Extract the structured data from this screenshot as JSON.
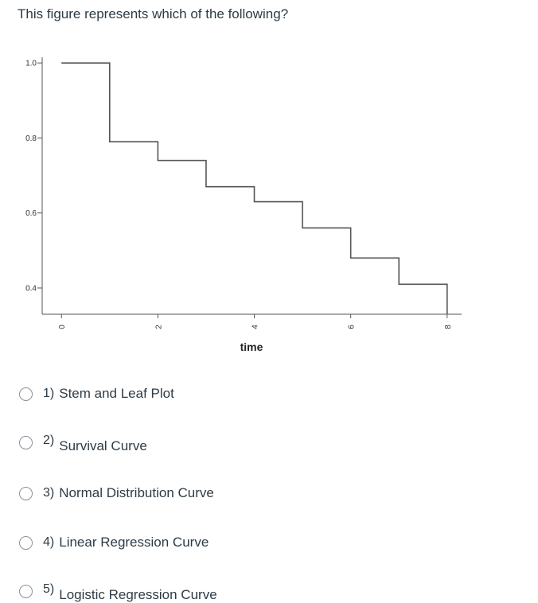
{
  "question": "This figure represents which of the following?",
  "chart_data": {
    "type": "line",
    "step": true,
    "xlabel": "time",
    "ylabel": "",
    "xlim": [
      -0.4,
      8.3
    ],
    "ylim": [
      0.33,
      1.03
    ],
    "xticks": [
      0,
      2,
      4,
      6,
      8
    ],
    "xticklabels": [
      "0",
      "2",
      "4",
      "6",
      "8"
    ],
    "yticks": [
      1.0,
      0.8,
      0.6,
      0.4
    ],
    "yticklabels": [
      "1.0",
      "0.8",
      "0.6",
      "0.4"
    ],
    "x": [
      0,
      1,
      2,
      3,
      4,
      5,
      6,
      7,
      8
    ],
    "y": [
      1.0,
      0.79,
      0.74,
      0.67,
      0.63,
      0.56,
      0.48,
      0.41,
      0.33
    ],
    "grid": false
  },
  "options": [
    {
      "number": "1)",
      "label": "Stem and Leaf Plot"
    },
    {
      "number": "2)",
      "label": "Survival Curve"
    },
    {
      "number": "3)",
      "label": "Normal Distribution Curve"
    },
    {
      "number": "4)",
      "label": "Linear Regression Curve"
    },
    {
      "number": "5)",
      "label": "Logistic Regression Curve"
    }
  ]
}
